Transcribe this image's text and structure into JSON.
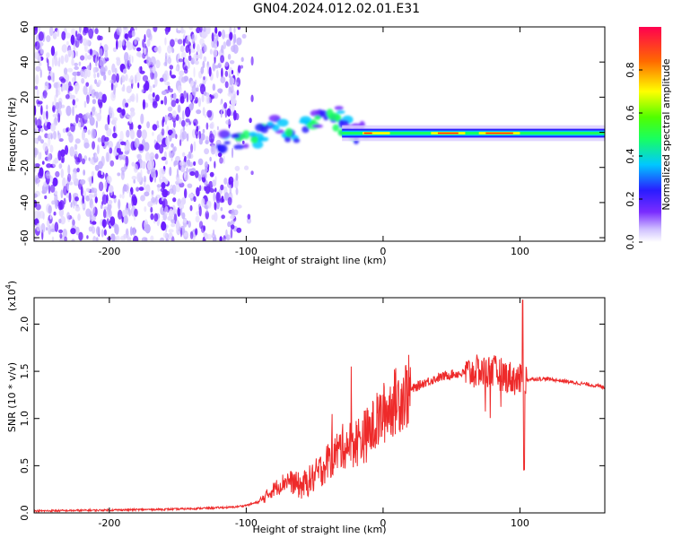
{
  "title": "GN04.2024.012.02.01.E31",
  "colors": {
    "snr_line": "#ee2a2a",
    "frame": "#000000"
  },
  "chart_data": [
    {
      "type": "heatmap",
      "xlabel": "Height of straight line (km)",
      "ylabel": "Frequency (Hz)",
      "xlim": [
        -255,
        162
      ],
      "ylim": [
        -62,
        60
      ],
      "x_ticks": [
        -200,
        -100,
        0,
        100
      ],
      "y_ticks": [
        -60,
        -40,
        -20,
        0,
        20,
        40,
        60
      ],
      "colorbar": {
        "label": "Normalized spectral amplitude",
        "range": [
          0,
          1
        ],
        "ticks": [
          0.0,
          0.2,
          0.4,
          0.6,
          0.8
        ]
      },
      "description_regions": [
        {
          "x_range": [
            -255,
            -105
          ],
          "freq_range": [
            -62,
            60
          ],
          "amplitude": 0.15
        },
        {
          "x_range": [
            -120,
            -30
          ],
          "freq_range": [
            -10,
            12
          ],
          "amplitude": 0.45
        },
        {
          "x_range": [
            -30,
            162
          ],
          "freq_range": [
            -4,
            3
          ],
          "amplitude": 0.55
        },
        {
          "x_range": [
            -15,
            5
          ],
          "freq_range": [
            -1,
            1
          ],
          "amplitude": 0.95
        },
        {
          "x_range": [
            35,
            100
          ],
          "freq_range": [
            -2,
            0
          ],
          "amplitude": 0.85
        }
      ]
    },
    {
      "type": "line",
      "xlabel": "Height of straight line (km)",
      "ylabel": "SNR (10 * v/v)",
      "y_multiplier": "(x10",
      "y_multiplier_exp": "4",
      "y_multiplier_close": ")",
      "xlim": [
        -255,
        162
      ],
      "ylim": [
        0,
        2.28
      ],
      "x_ticks": [
        -200,
        -100,
        0,
        100
      ],
      "y_ticks": [
        0.0,
        0.5,
        1.0,
        1.5,
        2.0
      ],
      "series": [
        {
          "color": "#ee2a2a",
          "x": [
            -255,
            -200,
            -150,
            -110,
            -100,
            -90,
            -80,
            -70,
            -60,
            -50,
            -40,
            -30,
            -20,
            -10,
            0,
            10,
            20,
            30,
            40,
            50,
            60,
            70,
            80,
            90,
            100,
            110,
            120,
            130,
            140,
            150,
            162
          ],
          "y": [
            0.02,
            0.03,
            0.04,
            0.06,
            0.08,
            0.12,
            0.25,
            0.35,
            0.28,
            0.38,
            0.55,
            0.7,
            0.75,
            0.85,
            1.05,
            1.2,
            1.3,
            1.38,
            1.43,
            1.47,
            1.48,
            1.5,
            1.5,
            1.45,
            1.4,
            1.42,
            1.42,
            1.4,
            1.38,
            1.36,
            1.33
          ]
        }
      ]
    }
  ]
}
